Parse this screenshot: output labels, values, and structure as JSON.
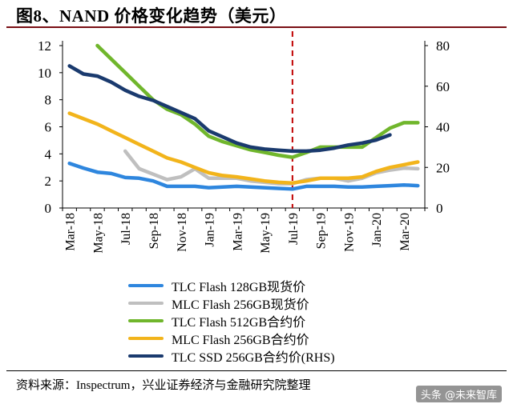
{
  "header": {
    "title": "图8、NAND 价格变化趋势（美元）"
  },
  "footer": {
    "source": "资料来源：Inspectrum，兴业证券经济与金融研究院整理",
    "watermark": "头条 @未来智库"
  },
  "chart_data": {
    "type": "line",
    "title": "图8、NAND 价格变化趋势（美元）",
    "months": [
      "Mar-18",
      "Apr-18",
      "May-18",
      "Jun-18",
      "Jul-18",
      "Aug-18",
      "Sep-18",
      "Oct-18",
      "Nov-18",
      "Dec-18",
      "Jan-19",
      "Feb-19",
      "Mar-19",
      "Apr-19",
      "May-19",
      "Jun-19",
      "Jul-19",
      "Aug-19",
      "Sep-19",
      "Oct-19",
      "Nov-19",
      "Dec-19",
      "Jan-20",
      "Feb-20",
      "Mar-20",
      "Apr-20"
    ],
    "x_tick_labels": [
      "Mar-18",
      "May-18",
      "Jul-18",
      "Sep-18",
      "Nov-18",
      "Jan-19",
      "Mar-19",
      "May-19",
      "Jul-19",
      "Sep-19",
      "Nov-19",
      "Jan-20",
      "Mar-20"
    ],
    "y_left": {
      "min": 0,
      "max": 12,
      "ticks": [
        0,
        2,
        4,
        6,
        8,
        10,
        12
      ]
    },
    "y_right": {
      "min": 0,
      "max": 80,
      "ticks": [
        0,
        20,
        40,
        60,
        80
      ]
    },
    "marker_line": {
      "x": "Jul-19",
      "color": "#c00000"
    },
    "series": [
      {
        "name": "TLC Flash 128GB现货价",
        "axis": "left",
        "color": "#2e86de",
        "values": [
          3.3,
          2.95,
          2.65,
          2.55,
          2.25,
          2.2,
          2.0,
          1.6,
          1.6,
          1.6,
          1.5,
          1.55,
          1.6,
          1.55,
          1.5,
          1.45,
          1.4,
          1.6,
          1.6,
          1.6,
          1.55,
          1.55,
          1.6,
          1.65,
          1.7,
          1.65
        ]
      },
      {
        "name": "MLC Flash 256GB现货价",
        "axis": "left",
        "color": "#bfbfbf",
        "values": [
          null,
          null,
          null,
          null,
          4.2,
          2.9,
          2.5,
          2.1,
          2.3,
          2.9,
          2.2,
          2.2,
          2.2,
          2.0,
          1.9,
          1.8,
          1.8,
          2.1,
          2.2,
          2.2,
          2.0,
          2.2,
          2.6,
          2.8,
          2.95,
          2.9
        ]
      },
      {
        "name": "TLC Flash 512GB合约价",
        "axis": "left",
        "color": "#70b62c",
        "values": [
          null,
          null,
          12.0,
          11.0,
          10.0,
          9.0,
          8.0,
          7.3,
          6.9,
          6.2,
          5.3,
          4.9,
          4.6,
          4.3,
          4.1,
          3.9,
          3.75,
          4.1,
          4.5,
          4.5,
          4.5,
          4.5,
          5.2,
          5.9,
          6.3,
          6.3
        ]
      },
      {
        "name": "MLC Flash 256GB合约价",
        "axis": "left",
        "color": "#f2b41b",
        "values": [
          7.0,
          6.6,
          6.2,
          5.7,
          5.2,
          4.7,
          4.2,
          3.7,
          3.4,
          3.0,
          2.6,
          2.4,
          2.3,
          2.15,
          2.0,
          1.9,
          1.85,
          2.0,
          2.2,
          2.2,
          2.2,
          2.3,
          2.7,
          3.0,
          3.2,
          3.4
        ]
      },
      {
        "name": "TLC SSD 256GB合约价(RHS)",
        "axis": "right",
        "color": "#1a3a6e",
        "values": [
          70,
          66,
          65,
          62,
          58,
          55,
          53,
          50,
          47,
          44,
          38,
          35,
          32,
          30,
          29,
          28.5,
          28,
          28,
          28.5,
          29.5,
          31,
          32,
          33.5,
          36,
          null,
          null
        ]
      }
    ]
  }
}
